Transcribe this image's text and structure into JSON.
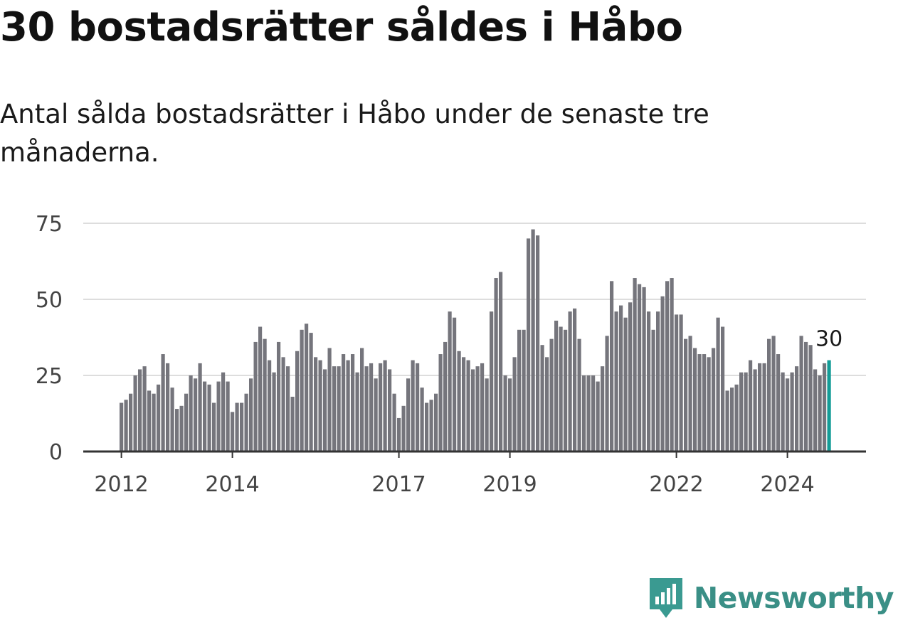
{
  "title": "30 bostadsrätter såldes i Håbo",
  "subtitle": "Antal sålda bostadsrätter i Håbo under de senaste tre månaderna.",
  "brand": {
    "name": "Newsworthy",
    "icon": "newsworthy-logo-icon",
    "color": "#3a9a91"
  },
  "colors": {
    "bar": "#75757c",
    "highlight": "#149c97",
    "grid": "#dddddd",
    "axis": "#333333"
  },
  "chart_data": {
    "type": "bar",
    "title": "30 bostadsrätter såldes i Håbo",
    "xlabel": "",
    "ylabel": "",
    "ylim": [
      0,
      75
    ],
    "yticks": [
      "0",
      "25",
      "50",
      "75"
    ],
    "xticks": [
      {
        "label": "2012",
        "index": 0
      },
      {
        "label": "2014",
        "index": 24
      },
      {
        "label": "2017",
        "index": 60
      },
      {
        "label": "2019",
        "index": 84
      },
      {
        "label": "2022",
        "index": 120
      },
      {
        "label": "2024",
        "index": 144
      }
    ],
    "values": [
      16,
      17,
      19,
      25,
      27,
      28,
      20,
      19,
      22,
      32,
      29,
      21,
      14,
      15,
      19,
      25,
      24,
      29,
      23,
      22,
      16,
      23,
      26,
      23,
      13,
      16,
      16,
      19,
      24,
      36,
      41,
      37,
      30,
      26,
      36,
      31,
      28,
      18,
      33,
      40,
      42,
      39,
      31,
      30,
      27,
      34,
      28,
      28,
      32,
      30,
      32,
      26,
      34,
      28,
      29,
      24,
      29,
      30,
      27,
      19,
      11,
      15,
      24,
      30,
      29,
      21,
      16,
      17,
      19,
      32,
      36,
      46,
      44,
      33,
      31,
      30,
      27,
      28,
      29,
      24,
      46,
      57,
      59,
      25,
      24,
      31,
      40,
      40,
      70,
      73,
      71,
      35,
      31,
      37,
      43,
      41,
      40,
      46,
      47,
      37,
      25,
      25,
      25,
      23,
      28,
      38,
      56,
      46,
      48,
      44,
      49,
      57,
      55,
      54,
      46,
      40,
      46,
      51,
      56,
      57,
      45,
      45,
      37,
      38,
      34,
      32,
      32,
      31,
      34,
      44,
      41,
      20,
      21,
      22,
      26,
      26,
      30,
      27,
      29,
      29,
      37,
      38,
      32,
      26,
      24,
      26,
      28,
      38,
      36,
      35,
      27,
      25,
      29,
      30
    ],
    "highlight_index": 153,
    "highlight_label": "30"
  }
}
